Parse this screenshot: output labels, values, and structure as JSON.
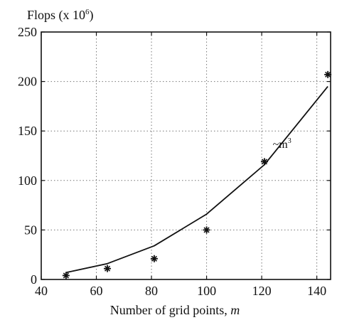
{
  "chart_data": {
    "type": "line",
    "ylabel_prefix": "Flops (x 10",
    "ylabel_exponent": "6",
    "ylabel_suffix": ")",
    "xlabel_prefix": "Number of grid points, ",
    "xlabel_var": "m",
    "xlim": [
      40,
      145
    ],
    "ylim": [
      0,
      250
    ],
    "xticks": [
      40,
      60,
      80,
      100,
      120,
      140
    ],
    "yticks": [
      0,
      50,
      100,
      150,
      200,
      250
    ],
    "grid": true,
    "grid_style": "dotted",
    "series": [
      {
        "kind": "scatter",
        "marker": "asterisk",
        "x": [
          49,
          64,
          81,
          100,
          121,
          144
        ],
        "y": [
          4,
          11,
          21,
          50,
          119,
          207
        ]
      },
      {
        "kind": "line",
        "x": [
          49,
          64,
          81,
          100,
          121,
          144
        ],
        "y": [
          7,
          16,
          34,
          66,
          116,
          195
        ]
      }
    ],
    "annotation": {
      "text_prefix": "~m",
      "text_exponent": "3",
      "x": 124,
      "y": 133
    }
  }
}
